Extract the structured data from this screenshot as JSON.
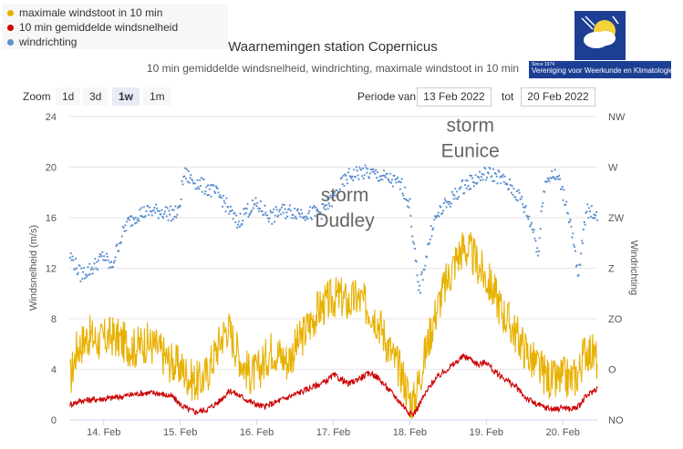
{
  "legend": [
    {
      "label": "maximale windstoot in 10 min",
      "color": "#e8b100"
    },
    {
      "label": "10 min gemiddelde windsnelheid",
      "color": "#cc0000"
    },
    {
      "label": "windrichting",
      "color": "#5b8fcf"
    }
  ],
  "title": "Waarnemingen station Copernicus",
  "subtitle": "10 min gemiddelde windsnelheid, windrichting, maximale windstoot in 10 min",
  "logo": {
    "since": "Since 1974",
    "text": "Vereniging voor Weerkunde en Klimatologie"
  },
  "zoom": {
    "label": "Zoom",
    "buttons": [
      "1d",
      "3d",
      "1w",
      "1m"
    ],
    "active": "1w"
  },
  "range": {
    "from_label": "Periode van",
    "from_value": "13 Feb 2022",
    "to_label": "tot",
    "to_value": "20 Feb 2022"
  },
  "chart_data": {
    "type": "line",
    "title": "Waarnemingen station Copernicus",
    "subtitle": "10 min gemiddelde windsnelheid, windrichting, maximale windstoot in 10 min",
    "x_range_days": [
      13.55,
      20.45
    ],
    "x_ticks": [
      {
        "day": 14,
        "label": "14. Feb"
      },
      {
        "day": 15,
        "label": "15. Feb"
      },
      {
        "day": 16,
        "label": "16. Feb"
      },
      {
        "day": 17,
        "label": "17. Feb"
      },
      {
        "day": 18,
        "label": "18. Feb"
      },
      {
        "day": 19,
        "label": "19. Feb"
      },
      {
        "day": 20,
        "label": "20. Feb"
      }
    ],
    "ylabel": "Windsnelheid (m/s)",
    "ylim": [
      0,
      24
    ],
    "yticks": [
      "0",
      "4",
      "8",
      "12",
      "16",
      "20",
      "24"
    ],
    "y2label": "Windrichting",
    "y2ticks": [
      "NO",
      "O",
      "ZO",
      "Z",
      "ZW",
      "W",
      "NW"
    ],
    "grid": true,
    "series": [
      {
        "name": "maximale windstoot in 10 min",
        "color": "#e8b100",
        "axis": "speed",
        "style": "line",
        "points": [
          [
            13.56,
            3.0
          ],
          [
            13.65,
            5.5
          ],
          [
            13.8,
            6.5
          ],
          [
            13.95,
            6.0
          ],
          [
            14.1,
            6.5
          ],
          [
            14.25,
            6.0
          ],
          [
            14.4,
            5.5
          ],
          [
            14.55,
            6.0
          ],
          [
            14.7,
            5.5
          ],
          [
            14.85,
            4.5
          ],
          [
            15.0,
            4.0
          ],
          [
            15.15,
            3.0
          ],
          [
            15.25,
            2.8
          ],
          [
            15.35,
            3.5
          ],
          [
            15.45,
            5.0
          ],
          [
            15.55,
            6.5
          ],
          [
            15.62,
            7.2
          ],
          [
            15.7,
            6.0
          ],
          [
            15.8,
            4.5
          ],
          [
            15.9,
            3.5
          ],
          [
            16.0,
            3.5
          ],
          [
            16.1,
            4.5
          ],
          [
            16.2,
            5.5
          ],
          [
            16.3,
            5.0
          ],
          [
            16.4,
            4.5
          ],
          [
            16.5,
            5.5
          ],
          [
            16.6,
            6.5
          ],
          [
            16.7,
            7.5
          ],
          [
            16.8,
            8.5
          ],
          [
            16.9,
            9.0
          ],
          [
            17.0,
            9.5
          ],
          [
            17.1,
            9.5
          ],
          [
            17.2,
            9.0
          ],
          [
            17.3,
            9.5
          ],
          [
            17.4,
            9.0
          ],
          [
            17.5,
            8.5
          ],
          [
            17.6,
            7.5
          ],
          [
            17.7,
            6.0
          ],
          [
            17.8,
            4.5
          ],
          [
            17.9,
            3.5
          ],
          [
            18.0,
            1.5
          ],
          [
            18.05,
            1.2
          ],
          [
            18.1,
            2.5
          ],
          [
            18.2,
            5.0
          ],
          [
            18.3,
            7.5
          ],
          [
            18.4,
            9.5
          ],
          [
            18.5,
            11.0
          ],
          [
            18.6,
            12.5
          ],
          [
            18.7,
            13.5
          ],
          [
            18.8,
            13.0
          ],
          [
            18.9,
            12.0
          ],
          [
            19.0,
            11.0
          ],
          [
            19.1,
            10.0
          ],
          [
            19.2,
            8.5
          ],
          [
            19.3,
            7.5
          ],
          [
            19.4,
            6.5
          ],
          [
            19.5,
            5.5
          ],
          [
            19.6,
            4.5
          ],
          [
            19.7,
            3.8
          ],
          [
            19.8,
            3.2
          ],
          [
            19.9,
            2.8
          ],
          [
            20.0,
            3.2
          ],
          [
            20.1,
            3.0
          ],
          [
            20.2,
            3.5
          ],
          [
            20.3,
            5.5
          ],
          [
            20.4,
            5.0
          ],
          [
            20.45,
            4.5
          ]
        ]
      },
      {
        "name": "10 min gemiddelde windsnelheid",
        "color": "#cc0000",
        "axis": "speed",
        "style": "line",
        "points": [
          [
            13.56,
            1.2
          ],
          [
            13.7,
            1.5
          ],
          [
            13.9,
            1.6
          ],
          [
            14.1,
            1.7
          ],
          [
            14.3,
            1.9
          ],
          [
            14.5,
            2.1
          ],
          [
            14.7,
            2.1
          ],
          [
            14.9,
            1.8
          ],
          [
            15.0,
            1.2
          ],
          [
            15.1,
            0.8
          ],
          [
            15.2,
            0.6
          ],
          [
            15.35,
            0.8
          ],
          [
            15.5,
            1.4
          ],
          [
            15.65,
            2.3
          ],
          [
            15.8,
            1.8
          ],
          [
            15.95,
            1.3
          ],
          [
            16.1,
            1.0
          ],
          [
            16.3,
            1.5
          ],
          [
            16.5,
            2.0
          ],
          [
            16.7,
            2.5
          ],
          [
            16.9,
            3.0
          ],
          [
            17.0,
            3.5
          ],
          [
            17.1,
            3.2
          ],
          [
            17.2,
            2.8
          ],
          [
            17.35,
            3.3
          ],
          [
            17.5,
            3.7
          ],
          [
            17.6,
            3.2
          ],
          [
            17.75,
            2.2
          ],
          [
            17.9,
            1.2
          ],
          [
            18.0,
            0.5
          ],
          [
            18.05,
            0.4
          ],
          [
            18.15,
            1.5
          ],
          [
            18.3,
            3.0
          ],
          [
            18.45,
            3.8
          ],
          [
            18.6,
            4.5
          ],
          [
            18.7,
            5.0
          ],
          [
            18.8,
            4.8
          ],
          [
            18.9,
            4.3
          ],
          [
            19.0,
            4.6
          ],
          [
            19.1,
            3.8
          ],
          [
            19.25,
            3.2
          ],
          [
            19.4,
            2.5
          ],
          [
            19.5,
            1.8
          ],
          [
            19.65,
            1.2
          ],
          [
            19.8,
            0.9
          ],
          [
            19.9,
            0.8
          ],
          [
            20.0,
            1.0
          ],
          [
            20.1,
            0.8
          ],
          [
            20.2,
            1.0
          ],
          [
            20.3,
            1.8
          ],
          [
            20.45,
            2.5
          ]
        ]
      },
      {
        "name": "windrichting",
        "color": "#5b8fcf",
        "axis": "direction",
        "style": "scatter",
        "points": [
          [
            13.56,
            13.0
          ],
          [
            13.7,
            11.5
          ],
          [
            13.85,
            12.0
          ],
          [
            14.0,
            13.0
          ],
          [
            14.1,
            12.0
          ],
          [
            14.2,
            14.0
          ],
          [
            14.3,
            15.5
          ],
          [
            14.45,
            16.3
          ],
          [
            14.6,
            16.5
          ],
          [
            14.75,
            16.5
          ],
          [
            14.9,
            16.3
          ],
          [
            14.98,
            16.4
          ],
          [
            15.05,
            19.5
          ],
          [
            15.15,
            19.0
          ],
          [
            15.3,
            18.5
          ],
          [
            15.45,
            18.0
          ],
          [
            15.55,
            17.5
          ],
          [
            15.65,
            16.5
          ],
          [
            15.75,
            15.5
          ],
          [
            15.85,
            16.5
          ],
          [
            16.0,
            17.0
          ],
          [
            16.1,
            16.5
          ],
          [
            16.2,
            16.0
          ],
          [
            16.3,
            16.5
          ],
          [
            16.5,
            16.5
          ],
          [
            16.7,
            16.3
          ],
          [
            16.85,
            16.5
          ],
          [
            17.0,
            17.5
          ],
          [
            17.1,
            18.5
          ],
          [
            17.2,
            19.3
          ],
          [
            17.35,
            19.6
          ],
          [
            17.5,
            19.5
          ],
          [
            17.65,
            19.2
          ],
          [
            17.75,
            19.0
          ],
          [
            17.9,
            18.5
          ],
          [
            18.0,
            17.0
          ],
          [
            18.05,
            14.0
          ],
          [
            18.12,
            10.0
          ],
          [
            18.2,
            12.5
          ],
          [
            18.3,
            15.5
          ],
          [
            18.4,
            16.5
          ],
          [
            18.55,
            17.5
          ],
          [
            18.7,
            18.5
          ],
          [
            18.85,
            19.0
          ],
          [
            19.0,
            19.5
          ],
          [
            19.15,
            19.3
          ],
          [
            19.3,
            18.5
          ],
          [
            19.45,
            17.5
          ],
          [
            19.55,
            16.0
          ],
          [
            19.62,
            15.0
          ],
          [
            19.68,
            13.0
          ],
          [
            19.75,
            18.5
          ],
          [
            19.85,
            19.5
          ],
          [
            19.95,
            19.0
          ],
          [
            20.05,
            17.0
          ],
          [
            20.12,
            15.0
          ],
          [
            20.2,
            11.0
          ],
          [
            20.3,
            16.5
          ],
          [
            20.45,
            16.3
          ]
        ]
      }
    ],
    "annotations": [
      {
        "lines": [
          "storm",
          "Dudley"
        ],
        "day": 17.15,
        "value": 17.3
      },
      {
        "lines": [
          "storm",
          "Eunice"
        ],
        "day": 18.79,
        "value": 22.8
      }
    ]
  }
}
